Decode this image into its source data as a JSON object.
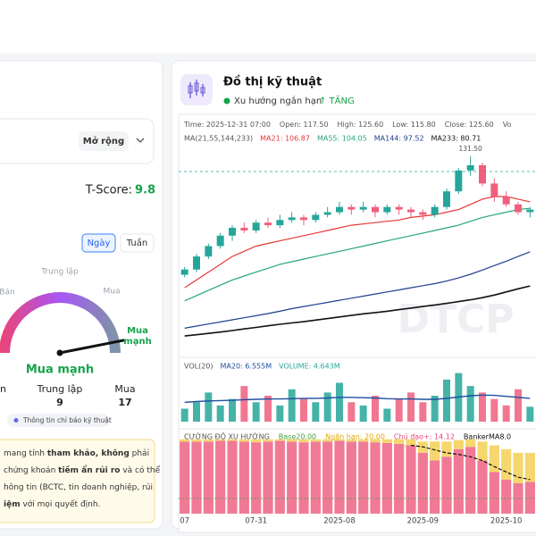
{
  "left_panel": {
    "expand_button": "Mở rộng",
    "t_score_label": "T-Score:",
    "t_score_value": "9.8",
    "tabs": [
      "Ngày",
      "Tuần"
    ],
    "gauge_labels": {
      "neutral": "Trung lập",
      "sell": "Bán",
      "buy": "Mua",
      "strong_buy": [
        "Mua",
        "mạnh"
      ]
    },
    "verdict": "Mua mạnh",
    "counts": [
      {
        "label": "n"
      },
      {
        "label": "Trung lập",
        "count": 9
      },
      {
        "label": "Mua",
        "count": 17
      }
    ],
    "info_pill": "Thông tin chỉ báo kỹ thuật",
    "disclaimer": [
      [
        {
          "text": "mang tính "
        },
        {
          "text": "tham khảo, không",
          "bold": true
        },
        {
          "text": " phải"
        }
      ],
      [
        {
          "text": "chứng khoán "
        },
        {
          "text": "tiềm ẩn rủi ro",
          "bold": true
        },
        {
          "text": " và có thể"
        }
      ],
      [
        {
          "text": "hông tin (BCTC, tin doanh nghiệp, rủi"
        }
      ],
      [
        {
          "text": "iệm",
          "bold": true
        },
        {
          "text": " với mọi quyết định."
        }
      ]
    ]
  },
  "right_panel": {
    "title": "Đồ thị kỹ thuật",
    "trend_label": "Xu hướng ngắn hạn",
    "trend_value": "↑ TĂNG",
    "watermark": "DTCP"
  },
  "chart_data": {
    "type": "candlestick",
    "info": [
      {
        "label": "Time:",
        "value_label": "2025-12-31 07:00"
      },
      {
        "label": "Open:",
        "value_label": "117.50"
      },
      {
        "label": "High:",
        "value_label": "125.60"
      },
      {
        "label": "Low:",
        "value_label": "115.80"
      },
      {
        "label": "Close:",
        "value_label": "125.60",
        "value": 125.6
      },
      {
        "label": "Vo"
      }
    ],
    "ma_label": "MA(21,55,144,233)",
    "up_color": "#26a69a",
    "down_color": "#ef5f7e",
    "ylim": [
      55,
      140
    ],
    "max_label": {
      "value": 131.5,
      "label": "131.50"
    },
    "x": [
      "07",
      null,
      null,
      null,
      null,
      null,
      "07-31",
      null,
      null,
      null,
      null,
      null,
      null,
      "2025-08",
      null,
      null,
      null,
      null,
      null,
      null,
      "2025-09",
      null,
      null,
      null,
      null,
      null,
      null,
      "2025-10",
      null,
      null
    ],
    "candles": [
      [
        86,
        89,
        85,
        88
      ],
      [
        88,
        94,
        87,
        93
      ],
      [
        93,
        98,
        92,
        97
      ],
      [
        97,
        102,
        96,
        101
      ],
      [
        101,
        105,
        99,
        104
      ],
      [
        104,
        106,
        102,
        103
      ],
      [
        103,
        107,
        102,
        106
      ],
      [
        106,
        108,
        104,
        105
      ],
      [
        105,
        109,
        104,
        107
      ],
      [
        107,
        110,
        106,
        108
      ],
      [
        108,
        109,
        105,
        107
      ],
      [
        107,
        110,
        106,
        109
      ],
      [
        109,
        112,
        108,
        110
      ],
      [
        110,
        114,
        109,
        112
      ],
      [
        112,
        113,
        109,
        111
      ],
      [
        111,
        114,
        110,
        112
      ],
      [
        112,
        113,
        108,
        110
      ],
      [
        110,
        113,
        109,
        112
      ],
      [
        112,
        113,
        109,
        111
      ],
      [
        111,
        112,
        108,
        110
      ],
      [
        110,
        111,
        107,
        109
      ],
      [
        109,
        113,
        108,
        112
      ],
      [
        112,
        119,
        111,
        118
      ],
      [
        118,
        127,
        117,
        126
      ],
      [
        126,
        131.5,
        124,
        128
      ],
      [
        128,
        129,
        120,
        121
      ],
      [
        121,
        123,
        114,
        116
      ],
      [
        116,
        118,
        112,
        113
      ],
      [
        113,
        114,
        109,
        110
      ],
      [
        110,
        112,
        108,
        111
      ]
    ],
    "series": [
      {
        "name": "MA21: 106.87",
        "color": "#e53935",
        "values": [
          81,
          84,
          87,
          90,
          93,
          95,
          97,
          98,
          99,
          100,
          101,
          102,
          103,
          104,
          105,
          105.5,
          106,
          106.5,
          107,
          108,
          108.5,
          109,
          110,
          111,
          113,
          115,
          116,
          116,
          115,
          114
        ]
      },
      {
        "name": "MA55: 104.05",
        "color": "#26a67a",
        "values": [
          76,
          78,
          80,
          82,
          84,
          85.5,
          87,
          88.5,
          90,
          91,
          92,
          93,
          94,
          95,
          96,
          97,
          98,
          99,
          100,
          101,
          102,
          103,
          104,
          105,
          106.5,
          108,
          109,
          110,
          111,
          111.5
        ]
      },
      {
        "name": "MA144: 97.52",
        "color": "#1f3f8f",
        "values": [
          65.5,
          66.3,
          67.1,
          67.9,
          68.7,
          69.5,
          70.3,
          71.1,
          72,
          73,
          73.8,
          74.6,
          75.4,
          76.2,
          77,
          77.8,
          78.6,
          79.4,
          80.2,
          81,
          81.8,
          82.6,
          83.6,
          84.8,
          86.2,
          87.8,
          89.5,
          91.2,
          93,
          94.8
        ]
      },
      {
        "name": "MA233: 80.71",
        "color": "#111111",
        "values": [
          62.5,
          63,
          63.5,
          64,
          64.6,
          65.2,
          65.8,
          66.4,
          67,
          67.5,
          68,
          68.6,
          69.2,
          69.8,
          70.4,
          71,
          71.5,
          72,
          72.6,
          73.2,
          73.8,
          74.4,
          75,
          75.7,
          76.4,
          77.2,
          78.2,
          79.4,
          80.6,
          81.7
        ]
      }
    ],
    "volume": {
      "label": "VOL(20)",
      "ylim": [
        0,
        16
      ],
      "name": "VOLUME: 4.643M",
      "name_color": "#26a69a",
      "values": [
        4,
        6,
        9,
        5,
        7,
        11,
        6,
        8,
        5,
        10,
        7,
        6,
        9,
        12,
        6,
        5,
        8,
        4,
        7,
        9,
        6,
        8,
        13,
        15,
        11,
        9,
        7,
        5,
        10,
        4.6
      ],
      "ma": {
        "name": "MA20: 6.555M",
        "color": "#1e4fa0",
        "values": [
          6,
          6.2,
          6.4,
          6.5,
          6.6,
          6.8,
          6.9,
          7,
          7,
          7.1,
          7.2,
          7.2,
          7.3,
          7.5,
          7.5,
          7.4,
          7.3,
          7.1,
          7,
          7,
          6.9,
          6.9,
          7.2,
          7.6,
          8,
          8.2,
          8.1,
          7.8,
          7.5,
          7.2
        ]
      }
    },
    "strength": {
      "label": "CƯỜNG ĐỘ XU HƯỚNG",
      "ylim": [
        0,
        100
      ],
      "base": {
        "name": "Base20.00",
        "color": "#43a047",
        "value": 20
      },
      "series": [
        {
          "name": "Chủ đạo+: 14.12",
          "color": "#f07a96",
          "values": [
            95,
            95,
            95,
            96,
            96,
            95,
            94,
            95,
            96,
            95,
            94,
            95,
            95,
            96,
            95,
            95,
            94,
            93,
            92,
            90,
            80,
            70,
            75,
            85,
            88,
            70,
            55,
            45,
            40,
            42
          ]
        },
        {
          "name": "Ngắn hạn: 20.00",
          "color": "#f5d76e",
          "values": [
            3,
            3,
            3,
            2,
            2,
            3,
            4,
            3,
            2,
            3,
            4,
            3,
            3,
            2,
            3,
            3,
            4,
            5,
            6,
            8,
            15,
            25,
            20,
            12,
            10,
            25,
            35,
            40,
            40,
            38
          ]
        }
      ],
      "banker": {
        "name": "BankerMA8.0",
        "color": "#111111",
        "values": [
          null,
          null,
          null,
          null,
          null,
          null,
          null,
          null,
          null,
          null,
          null,
          null,
          null,
          null,
          null,
          null,
          null,
          null,
          null,
          90,
          88,
          84,
          80,
          78,
          75,
          70,
          62,
          55,
          48,
          45
        ]
      }
    }
  }
}
